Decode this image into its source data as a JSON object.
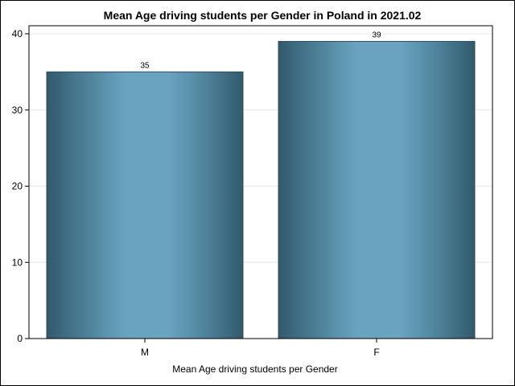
{
  "chart_data": {
    "type": "bar",
    "title": "Mean Age driving students per Gender in Poland in 2021.02",
    "xlabel": "Mean Age driving students per Gender",
    "ylabel": "",
    "categories": [
      "M",
      "F"
    ],
    "values": [
      35,
      39
    ],
    "data_labels": [
      "35",
      "39"
    ],
    "ylim": [
      0,
      40
    ],
    "yticks": [
      0,
      10,
      20,
      30,
      40
    ],
    "grid": "horizontal",
    "colors": {
      "bar_edge": "#2f4f5e",
      "bar_dark": "#3a6378",
      "bar_light": "#6fa8c4",
      "grid": "#e6e6e6"
    }
  }
}
